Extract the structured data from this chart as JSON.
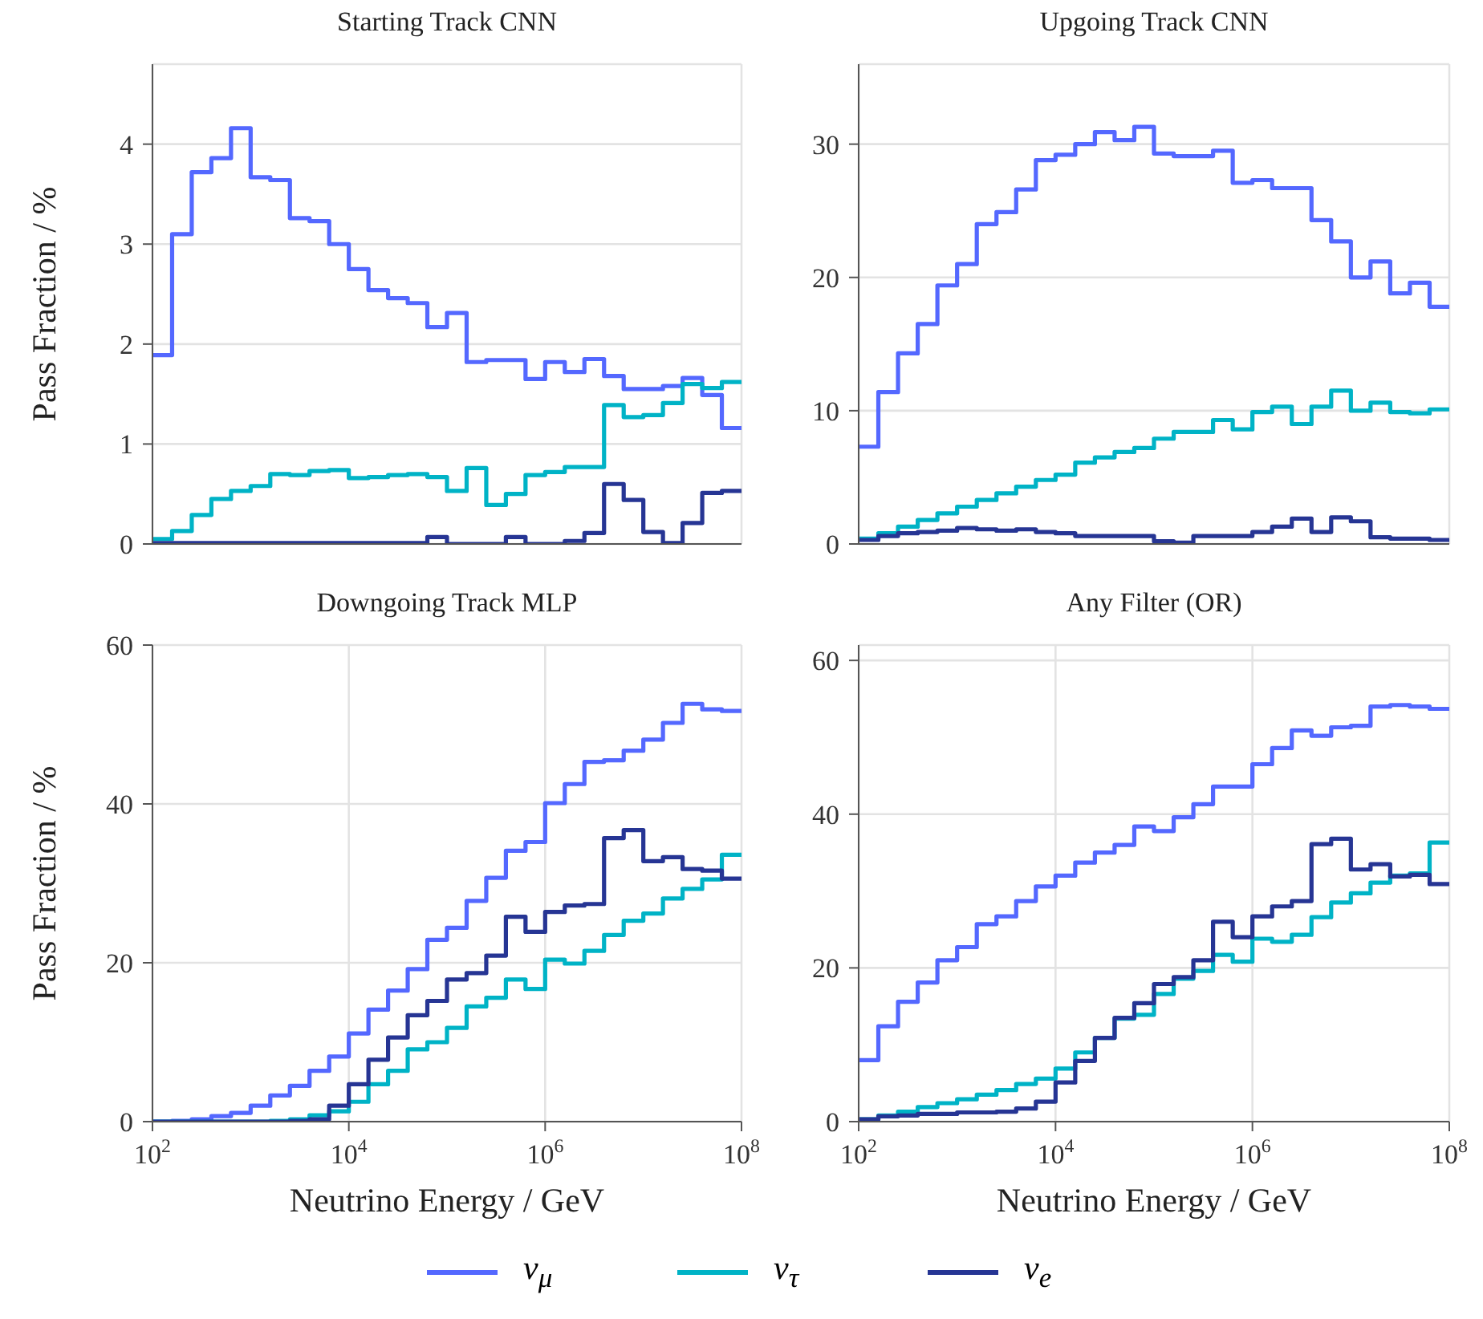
{
  "chart_data": [
    {
      "type": "histogram",
      "title": "Starting Track CNN",
      "ylabel": "Pass Fraction / %",
      "log": "x",
      "grid": true,
      "legend": "bottom",
      "tick_labels": "y",
      "bins": [
        100,
        158.49,
        251.19,
        398.11,
        630.96,
        1000,
        1584.9,
        2511.9,
        3981.1,
        6309.6,
        10000,
        15849,
        25119,
        39811,
        63096,
        100000,
        158489,
        251189,
        398107,
        630957,
        1000000,
        1584893,
        2511886,
        3981072,
        6309573,
        10000000,
        15848932,
        25118864,
        39810717,
        63095734,
        100000000
      ],
      "xlim": [
        100,
        100000000
      ],
      "xticks": [
        {
          "value": 100,
          "label": null
        },
        {
          "value": 10000,
          "label": null
        },
        {
          "value": 1000000,
          "label": null
        },
        {
          "value": 100000000,
          "label": null
        }
      ],
      "ylim": [
        0,
        4.8
      ],
      "yticks": [
        0,
        1,
        2,
        3,
        4
      ],
      "series": [
        {
          "name": "ν$_{μ}$",
          "color": "#5468ff",
          "values": [
            1.89,
            3.1,
            3.72,
            3.86,
            4.16,
            3.67,
            3.64,
            3.26,
            3.23,
            3.0,
            2.75,
            2.54,
            2.46,
            2.41,
            2.17,
            2.31,
            1.82,
            1.84,
            1.84,
            1.65,
            1.82,
            1.72,
            1.85,
            1.68,
            1.55,
            1.55,
            1.58,
            1.66,
            1.49,
            1.16
          ]
        },
        {
          "name": "ν$_{τ}$",
          "color": "#00b3c6",
          "values": [
            0.05,
            0.13,
            0.29,
            0.45,
            0.53,
            0.58,
            0.7,
            0.69,
            0.73,
            0.74,
            0.66,
            0.67,
            0.69,
            0.7,
            0.67,
            0.53,
            0.76,
            0.39,
            0.5,
            0.69,
            0.72,
            0.77,
            0.77,
            1.39,
            1.27,
            1.29,
            1.41,
            1.6,
            1.56,
            1.62
          ]
        },
        {
          "name": "ν$_{e}$",
          "color": "#263594",
          "values": [
            0.01,
            0.01,
            0.01,
            0.01,
            0.01,
            0.01,
            0.01,
            0.01,
            0.01,
            0.01,
            0.01,
            0.01,
            0.01,
            0.01,
            0.07,
            0,
            0,
            0,
            0.07,
            0,
            0,
            0.03,
            0.11,
            0.6,
            0.44,
            0.12,
            0.01,
            0.21,
            0.51,
            0.53
          ]
        }
      ]
    },
    {
      "type": "histogram",
      "title": "Upgoing Track CNN",
      "log": "x",
      "grid": true,
      "tick_labels": "y",
      "bins": [
        100,
        158.49,
        251.19,
        398.11,
        630.96,
        1000,
        1584.9,
        2511.9,
        3981.1,
        6309.6,
        10000,
        15849,
        25119,
        39811,
        63096,
        100000,
        158489,
        251189,
        398107,
        630957,
        1000000,
        1584893,
        2511886,
        3981072,
        6309573,
        10000000,
        15848932,
        25118864,
        39810717,
        63095734,
        100000000
      ],
      "xlim": [
        100,
        100000000
      ],
      "xticks": [
        {
          "value": 100,
          "label": null
        },
        {
          "value": 10000,
          "label": null
        },
        {
          "value": 1000000,
          "label": null
        },
        {
          "value": 100000000,
          "label": null
        }
      ],
      "ylim": [
        0,
        36
      ],
      "yticks": [
        0,
        10,
        20,
        30
      ],
      "series": [
        {
          "color": "#5468ff",
          "values": [
            7.3,
            11.4,
            14.3,
            16.5,
            19.4,
            21.0,
            24.0,
            24.9,
            26.6,
            28.8,
            29.2,
            30.0,
            30.9,
            30.3,
            31.3,
            29.3,
            29.1,
            29.1,
            29.5,
            27.1,
            27.3,
            26.7,
            26.7,
            24.3,
            22.7,
            20.0,
            21.2,
            18.8,
            19.6,
            17.8
          ]
        },
        {
          "color": "#00b3c6",
          "values": [
            0.4,
            0.8,
            1.3,
            1.8,
            2.3,
            2.8,
            3.3,
            3.8,
            4.3,
            4.8,
            5.2,
            6.1,
            6.5,
            6.9,
            7.2,
            7.9,
            8.4,
            8.4,
            9.3,
            8.6,
            9.9,
            10.3,
            9.0,
            10.3,
            11.5,
            10.0,
            10.6,
            9.9,
            9.8,
            10.1
          ]
        },
        {
          "color": "#263594",
          "values": [
            0.3,
            0.6,
            0.8,
            0.9,
            1.0,
            1.2,
            1.1,
            1.0,
            1.1,
            0.9,
            0.8,
            0.6,
            0.6,
            0.6,
            0.6,
            0.2,
            0.1,
            0.6,
            0.6,
            0.6,
            0.9,
            1.3,
            1.9,
            0.9,
            2.0,
            1.7,
            0.5,
            0.4,
            0.4,
            0.3
          ]
        }
      ]
    },
    {
      "type": "histogram",
      "title": "Downgoing Track MLP",
      "xlabel": "Neutrino Energy / GeV",
      "ylabel": "Pass Fraction / %",
      "log": "x",
      "grid": true,
      "bins": [
        100,
        158.49,
        251.19,
        398.11,
        630.96,
        1000,
        1584.9,
        2511.9,
        3981.1,
        6309.6,
        10000,
        15849,
        25119,
        39811,
        63096,
        100000,
        158489,
        251189,
        398107,
        630957,
        1000000,
        1584893,
        2511886,
        3981072,
        6309573,
        10000000,
        15848932,
        25118864,
        39810717,
        63095734,
        100000000
      ],
      "xlim": [
        100,
        100000000
      ],
      "xticks": [
        {
          "value": 100,
          "label": "10$^{2}$"
        },
        {
          "value": 10000,
          "label": "10$^{4}$"
        },
        {
          "value": 1000000,
          "label": "10$^{6}$"
        },
        {
          "value": 100000000,
          "label": "10$^{8}$"
        }
      ],
      "ylim": [
        0,
        60
      ],
      "yticks": [
        0,
        20,
        40,
        60
      ],
      "series": [
        {
          "color": "#5468ff",
          "values": [
            0,
            0.1,
            0.3,
            0.7,
            1.1,
            2.0,
            3.3,
            4.5,
            6.4,
            8.2,
            11.1,
            14.1,
            16.5,
            19.2,
            22.9,
            24.4,
            27.8,
            30.7,
            34.1,
            35.2,
            40.1,
            42.5,
            45.3,
            45.5,
            46.7,
            48.1,
            50.2,
            52.6,
            51.9,
            51.7
          ]
        },
        {
          "color": "#00b3c6",
          "values": [
            0,
            0,
            0,
            0,
            0,
            0,
            0.1,
            0.3,
            0.8,
            1.3,
            2.5,
            4.7,
            6.4,
            9.1,
            10.0,
            11.8,
            14.5,
            15.6,
            17.9,
            16.7,
            20.4,
            19.9,
            21.5,
            23.5,
            25.3,
            26.2,
            28.1,
            29.3,
            30.5,
            33.6
          ]
        },
        {
          "color": "#263594",
          "values": [
            0,
            0,
            0,
            0,
            0,
            0,
            0,
            0.1,
            0.3,
            2.0,
            4.7,
            7.8,
            10.6,
            13.4,
            15.2,
            17.9,
            18.7,
            20.9,
            25.8,
            23.9,
            26.4,
            27.2,
            27.4,
            35.7,
            36.7,
            32.8,
            33.3,
            31.8,
            31.6,
            30.6
          ]
        }
      ]
    },
    {
      "type": "histogram",
      "title": "Any Filter (OR)",
      "xlabel": "Neutrino Energy / GeV",
      "log": "x",
      "grid": true,
      "bins": [
        100,
        158.49,
        251.19,
        398.11,
        630.96,
        1000,
        1584.9,
        2511.9,
        3981.1,
        6309.6,
        10000,
        15849,
        25119,
        39811,
        63096,
        100000,
        158489,
        251189,
        398107,
        630957,
        1000000,
        1584893,
        2511886,
        3981072,
        6309573,
        10000000,
        15848932,
        25118864,
        39810717,
        63095734,
        100000000
      ],
      "xlim": [
        100,
        100000000
      ],
      "xticks": [
        {
          "value": 100,
          "label": "10$^{2}$"
        },
        {
          "value": 10000,
          "label": "10$^{4}$"
        },
        {
          "value": 1000000,
          "label": "10$^{6}$"
        },
        {
          "value": 100000000,
          "label": "10$^{8}$"
        }
      ],
      "ylim": [
        0,
        62
      ],
      "yticks": [
        0,
        20,
        40,
        60
      ],
      "series": [
        {
          "color": "#5468ff",
          "values": [
            8.0,
            12.4,
            15.6,
            18.1,
            21.0,
            22.7,
            25.7,
            26.7,
            28.7,
            30.6,
            32.0,
            33.7,
            35.0,
            36.0,
            38.4,
            37.8,
            39.6,
            41.3,
            43.6,
            43.6,
            46.5,
            48.6,
            50.9,
            50.2,
            51.3,
            51.5,
            54.0,
            54.2,
            54.0,
            53.7
          ]
        },
        {
          "color": "#00b3c6",
          "values": [
            0.3,
            0.8,
            1.3,
            1.9,
            2.4,
            2.9,
            3.5,
            4.1,
            4.9,
            5.6,
            6.9,
            9.0,
            10.9,
            13.4,
            13.9,
            16.6,
            18.6,
            19.6,
            21.7,
            20.8,
            23.8,
            23.4,
            24.3,
            26.6,
            28.5,
            29.7,
            31.1,
            32.0,
            32.3,
            36.3
          ]
        },
        {
          "color": "#263594",
          "values": [
            0.3,
            0.7,
            0.8,
            1.0,
            1.0,
            1.2,
            1.2,
            1.3,
            1.7,
            2.6,
            5.1,
            7.9,
            10.9,
            13.5,
            15.4,
            17.9,
            18.8,
            21.0,
            26.0,
            24.0,
            26.7,
            28.0,
            28.7,
            36.1,
            36.8,
            32.8,
            33.5,
            31.9,
            32.1,
            30.9
          ]
        }
      ]
    }
  ]
}
